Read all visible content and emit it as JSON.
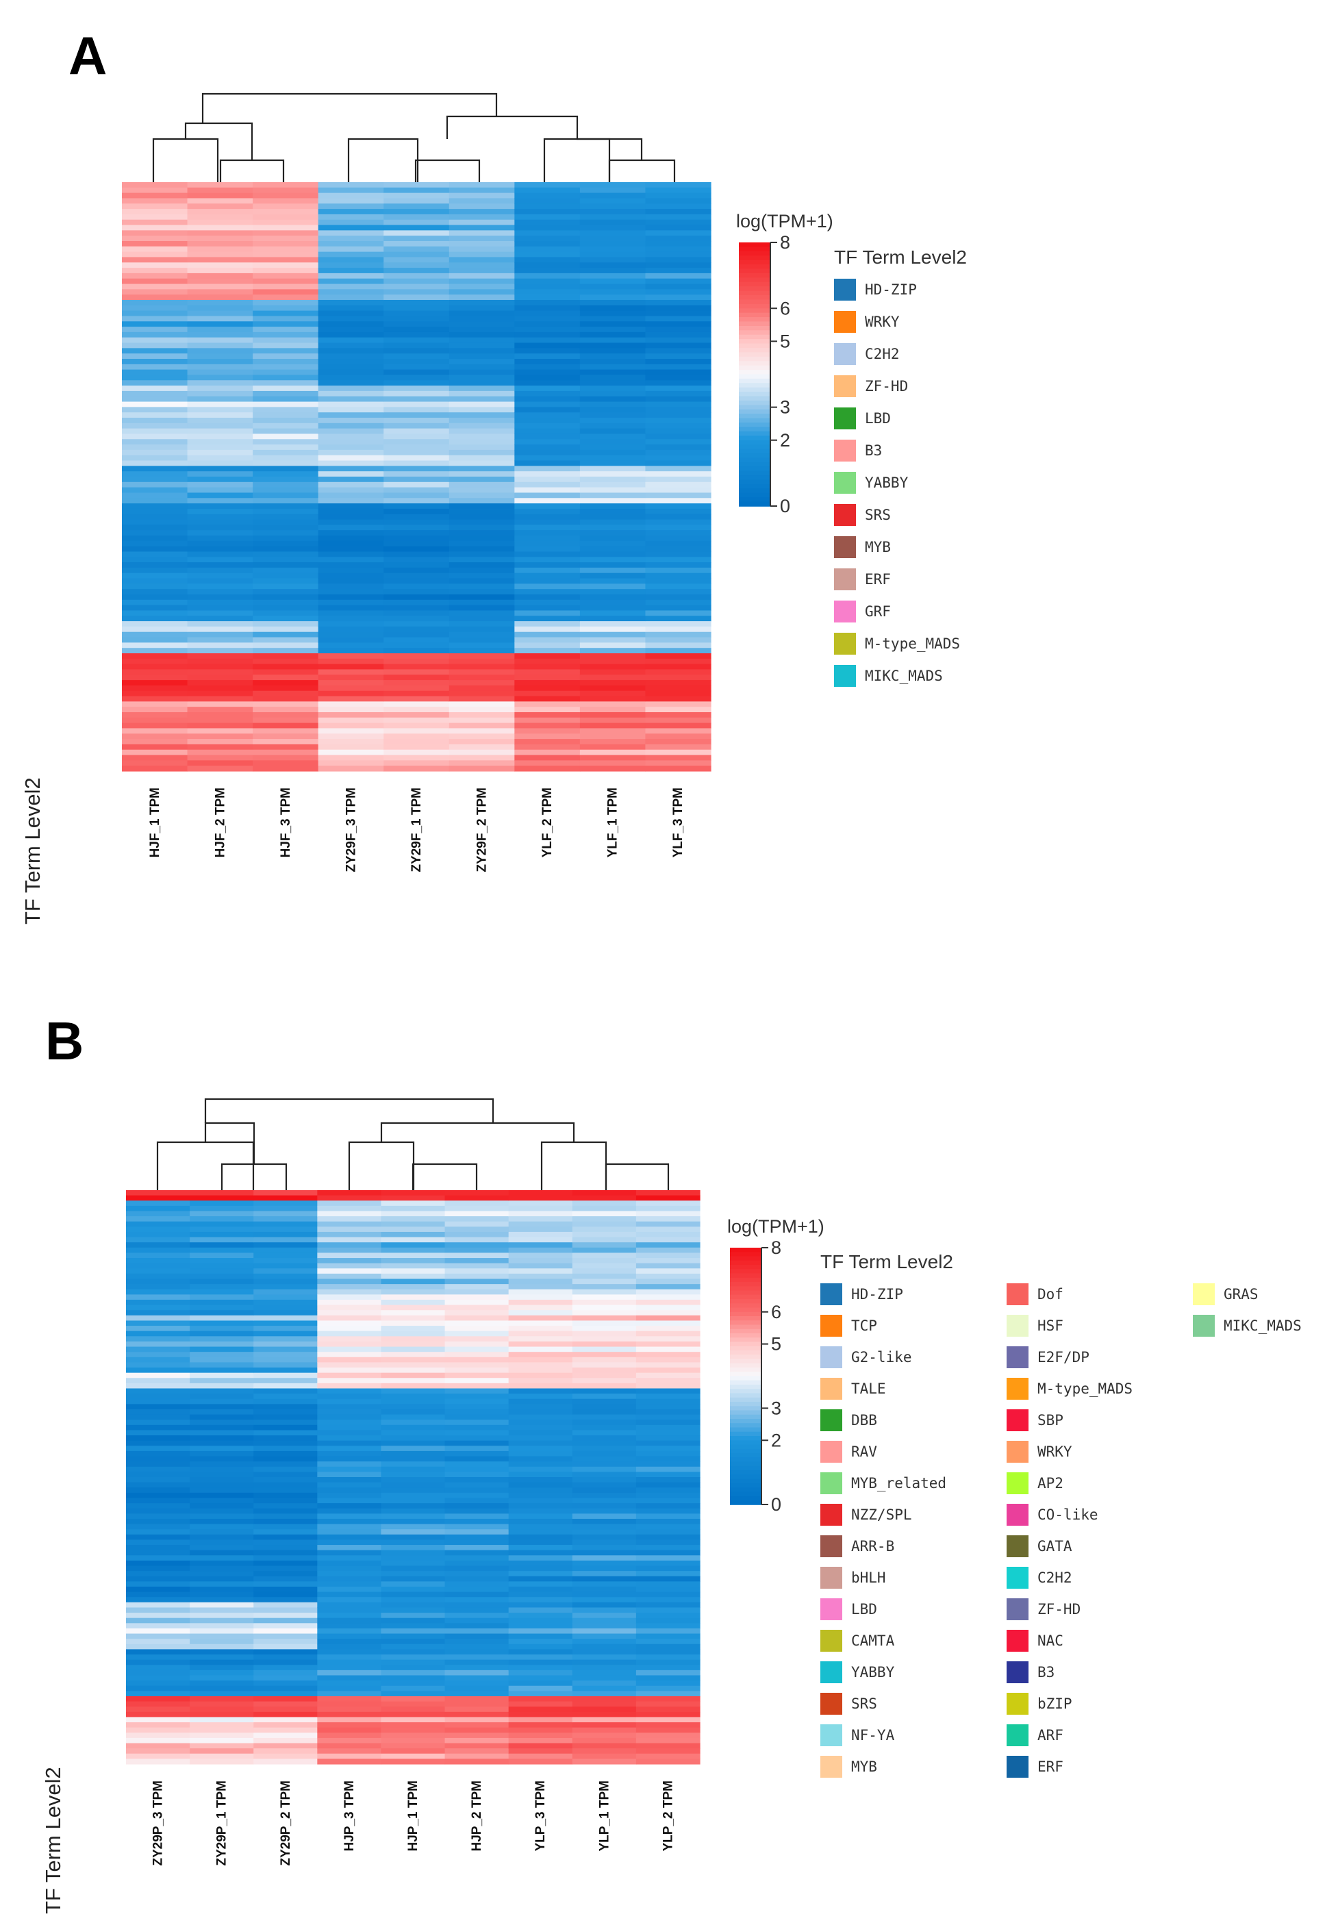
{
  "chart_data": [
    {
      "type": "heatmap",
      "panel": "A",
      "samples": [
        "HJF_1 TPM",
        "HJF_2 TPM",
        "HJF_3 TPM",
        "ZY29F_3 TPM",
        "ZY29F_1 TPM",
        "ZY29F_2 TPM",
        "YLF_2 TPM",
        "YLF_1 TPM",
        "YLF_3 TPM"
      ],
      "side_label": "TF Term Level2",
      "scale_title": "log(TPM+1)",
      "scale_ticks": [
        "8",
        "6",
        "5",
        "3",
        "2",
        "0"
      ],
      "scale_range": [
        0,
        8
      ],
      "legend_title": "TF Term Level2",
      "legend_items": [
        {
          "label": "HD-ZIP",
          "color": "#1f77b4"
        },
        {
          "label": "WRKY",
          "color": "#ff7f0e"
        },
        {
          "label": "C2H2",
          "color": "#aec7e8"
        },
        {
          "label": "ZF-HD",
          "color": "#ffbb78"
        },
        {
          "label": "LBD",
          "color": "#2ca02c"
        },
        {
          "label": "B3",
          "color": "#ff9896"
        },
        {
          "label": "YABBY",
          "color": "#7fdc7f"
        },
        {
          "label": "SRS",
          "color": "#e8282b"
        },
        {
          "label": "MYB",
          "color": "#9b564b"
        },
        {
          "label": "ERF",
          "color": "#cf9c94"
        },
        {
          "label": "GRF",
          "color": "#f87fcb"
        },
        {
          "label": "M-type_MADS",
          "color": "#bcbd22"
        },
        {
          "label": "MIKC_MADS",
          "color": "#17becf"
        }
      ],
      "row_blocks": [
        {
          "start": 0.0,
          "end": 0.2,
          "clusters": [
            5.3,
            2.6,
            1.6
          ]
        },
        {
          "start": 0.2,
          "end": 0.35,
          "clusters": [
            2.5,
            1.1,
            0.6
          ]
        },
        {
          "start": 0.35,
          "end": 0.48,
          "clusters": [
            3.4,
            3.2,
            1.5
          ]
        },
        {
          "start": 0.48,
          "end": 0.55,
          "clusters": [
            2.0,
            2.8,
            3.3
          ]
        },
        {
          "start": 0.55,
          "end": 0.75,
          "clusters": [
            1.2,
            0.7,
            1.4
          ]
        },
        {
          "start": 0.75,
          "end": 0.8,
          "clusters": [
            3.2,
            1.2,
            3.1
          ]
        },
        {
          "start": 0.8,
          "end": 0.88,
          "clusters": [
            7.3,
            7.0,
            7.5
          ]
        },
        {
          "start": 0.88,
          "end": 1.0,
          "clusters": [
            5.8,
            4.8,
            5.6
          ]
        }
      ]
    },
    {
      "type": "heatmap",
      "panel": "B",
      "samples": [
        "ZY29P_3 TPM",
        "ZY29P_1 TPM",
        "ZY29P_2 TPM",
        "HJP_3 TPM",
        "HJP_1 TPM",
        "HJP_2 TPM",
        "YLP_3 TPM",
        "YLP_1 TPM",
        "YLP_2 TPM"
      ],
      "side_label": "TF Term Level2",
      "scale_title": "log(TPM+1)",
      "scale_ticks": [
        "8",
        "6",
        "5",
        "3",
        "2",
        "0"
      ],
      "scale_range": [
        0,
        8
      ],
      "legend_title": "TF Term Level2",
      "legend_items": [
        {
          "label": "HD-ZIP",
          "color": "#1f77b4"
        },
        {
          "label": "TCP",
          "color": "#ff7f0e"
        },
        {
          "label": "G2-like",
          "color": "#aec7e8"
        },
        {
          "label": "TALE",
          "color": "#ffbb78"
        },
        {
          "label": "DBB",
          "color": "#2ca02c"
        },
        {
          "label": "RAV",
          "color": "#ff9896"
        },
        {
          "label": "MYB_related",
          "color": "#7fdc7f"
        },
        {
          "label": "NZZ/SPL",
          "color": "#e8282b"
        },
        {
          "label": "ARR-B",
          "color": "#9b564b"
        },
        {
          "label": "bHLH",
          "color": "#cf9c94"
        },
        {
          "label": "LBD",
          "color": "#f87fcb"
        },
        {
          "label": "CAMTA",
          "color": "#bcbd22"
        },
        {
          "label": "YABBY",
          "color": "#17becf"
        },
        {
          "label": "SRS",
          "color": "#d2431a"
        },
        {
          "label": "NF-YA",
          "color": "#86dbe6"
        },
        {
          "label": "MYB",
          "color": "#ffcc99"
        },
        {
          "label": "Dof",
          "color": "#f7615d"
        },
        {
          "label": "HSF",
          "color": "#e9f8c9"
        },
        {
          "label": "E2F/DP",
          "color": "#6d6ba8"
        },
        {
          "label": "M-type_MADS",
          "color": "#ff9a12"
        },
        {
          "label": "SBP",
          "color": "#f5173b"
        },
        {
          "label": "WRKY",
          "color": "#ff9a62"
        },
        {
          "label": "AP2",
          "color": "#adff2f"
        },
        {
          "label": "CO-like",
          "color": "#ea3f9b"
        },
        {
          "label": "GATA",
          "color": "#6b6b2f"
        },
        {
          "label": "C2H2",
          "color": "#15cfcf"
        },
        {
          "label": "ZF-HD",
          "color": "#6b6ea6"
        },
        {
          "label": "NAC",
          "color": "#f5173b"
        },
        {
          "label": "B3",
          "color": "#2c3598"
        },
        {
          "label": "bZIP",
          "color": "#cccc12"
        },
        {
          "label": "ARF",
          "color": "#17c99d"
        },
        {
          "label": "ERF",
          "color": "#1164a3"
        },
        {
          "label": "GRAS",
          "color": "#ffff99"
        },
        {
          "label": "MIKC_MADS",
          "color": "#7fcd95"
        }
      ],
      "row_blocks": [
        {
          "start": 0.0,
          "end": 0.015,
          "clusters": [
            7.5,
            7.5,
            7.5
          ]
        },
        {
          "start": 0.015,
          "end": 0.18,
          "clusters": [
            1.8,
            3.0,
            3.2
          ]
        },
        {
          "start": 0.18,
          "end": 0.32,
          "clusters": [
            2.3,
            4.3,
            4.5
          ]
        },
        {
          "start": 0.32,
          "end": 0.35,
          "clusters": [
            3.8,
            4.8,
            4.6
          ]
        },
        {
          "start": 0.35,
          "end": 0.72,
          "clusters": [
            0.8,
            1.6,
            1.5
          ]
        },
        {
          "start": 0.72,
          "end": 0.8,
          "clusters": [
            3.6,
            1.9,
            2.1
          ]
        },
        {
          "start": 0.8,
          "end": 0.88,
          "clusters": [
            1.2,
            1.8,
            1.9
          ]
        },
        {
          "start": 0.88,
          "end": 0.92,
          "clusters": [
            6.6,
            6.2,
            6.6
          ]
        },
        {
          "start": 0.92,
          "end": 1.0,
          "clusters": [
            4.6,
            5.8,
            5.9
          ]
        }
      ]
    }
  ]
}
